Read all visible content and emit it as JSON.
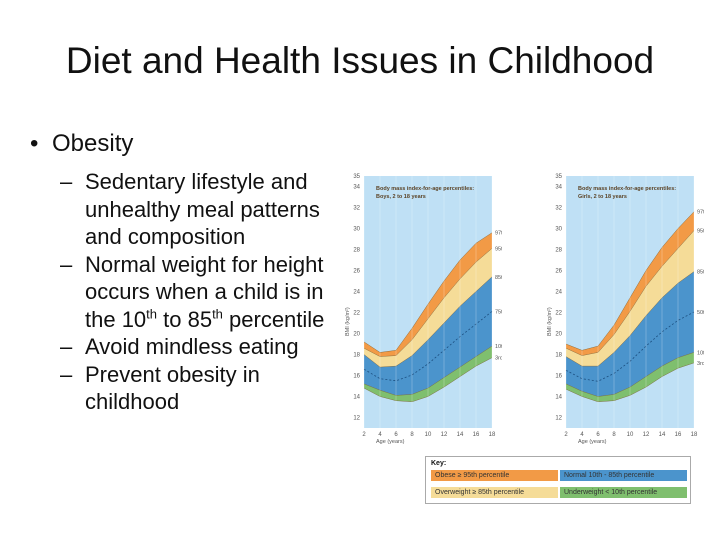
{
  "slide": {
    "title": "Diet and Health Issues in Childhood",
    "bullet": "Obesity",
    "bullet_marker": "•",
    "sub_marker": "–",
    "sub_items": [
      {
        "text": "Sedentary lifestyle and unhealthy meal patterns and composition"
      },
      {
        "pre": "Normal weight for height occurs when a child is in the 10",
        "sup1": "th",
        "mid": " to 85",
        "sup2": "th",
        "post": " percentile"
      },
      {
        "text": "Avoid mindless eating"
      },
      {
        "text": "Prevent obesity in childhood"
      }
    ]
  },
  "key": {
    "title": "Key:",
    "items": [
      {
        "label": "Obese ≥ 95th percentile",
        "color": "#f29a46"
      },
      {
        "label": "Normal 10th - 85th percentile",
        "color": "#4b94cc"
      },
      {
        "label": "Overweight ≥ 85th percentile",
        "color": "#f5dc98"
      },
      {
        "label": "Underweight < 10th percentile",
        "color": "#7fbf6e"
      }
    ]
  },
  "chart_data": [
    {
      "type": "area",
      "title": "Body mass index-for-age percentiles:",
      "subtitle": "Boys, 2 to 18 years",
      "ylabel": "BMI (kg/m²)",
      "xlabel": "Age (years)",
      "x": [
        2,
        4,
        6,
        8,
        10,
        12,
        14,
        16,
        18
      ],
      "yticks": [
        12,
        14,
        16,
        18,
        20,
        22,
        24,
        26,
        28,
        30,
        32,
        34,
        35
      ],
      "ylim": [
        11,
        35
      ],
      "xlim": [
        2,
        18
      ],
      "colors": {
        "background": "#bfe0f5",
        "obese": "#f29a46",
        "overweight": "#f5dc98",
        "normal": "#4b94cc",
        "underweight": "#7fbf6e",
        "low": "#9dd0ee"
      },
      "series": [
        {
          "name": "97th",
          "values": [
            19.2,
            18.2,
            18.4,
            20.5,
            22.8,
            25.0,
            27.0,
            28.6,
            29.6
          ]
        },
        {
          "name": "95th",
          "values": [
            18.6,
            17.8,
            17.9,
            19.4,
            21.4,
            23.4,
            25.2,
            26.8,
            28.1
          ]
        },
        {
          "name": "85th",
          "values": [
            18.0,
            16.8,
            16.9,
            17.9,
            19.4,
            21.0,
            22.6,
            24.0,
            25.4
          ]
        },
        {
          "name": "10th",
          "values": [
            15.2,
            14.6,
            14.1,
            14.2,
            14.8,
            15.8,
            16.8,
            17.8,
            18.8
          ]
        },
        {
          "name": "3rd",
          "values": [
            14.8,
            14.0,
            13.6,
            13.5,
            14.0,
            14.9,
            15.9,
            16.9,
            17.7
          ]
        }
      ],
      "right_labels": [
        "97th",
        "95th",
        "85th",
        "75th",
        "10th",
        "3rd"
      ]
    },
    {
      "type": "area",
      "title": "Body mass index-for-age percentiles:",
      "subtitle": "Girls, 2 to 18 years",
      "ylabel": "BMI (kg/m²)",
      "xlabel": "Age (years)",
      "x": [
        2,
        4,
        6,
        8,
        10,
        12,
        14,
        16,
        18
      ],
      "yticks": [
        12,
        14,
        16,
        18,
        20,
        22,
        24,
        26,
        28,
        30,
        32,
        34,
        35
      ],
      "ylim": [
        11,
        35
      ],
      "xlim": [
        2,
        18
      ],
      "colors": {
        "background": "#bfe0f5",
        "obese": "#f29a46",
        "overweight": "#f5dc98",
        "normal": "#4b94cc",
        "underweight": "#7fbf6e",
        "low": "#9dd0ee"
      },
      "series": [
        {
          "name": "97th",
          "values": [
            19.0,
            18.4,
            18.8,
            20.8,
            23.4,
            26.0,
            28.2,
            30.0,
            31.6
          ]
        },
        {
          "name": "95th",
          "values": [
            18.6,
            17.9,
            18.2,
            19.9,
            22.1,
            24.5,
            26.4,
            28.1,
            29.8
          ]
        },
        {
          "name": "85th",
          "values": [
            17.8,
            16.9,
            16.9,
            18.2,
            19.8,
            21.7,
            23.4,
            24.8,
            25.9
          ]
        },
        {
          "name": "10th",
          "values": [
            15.2,
            14.5,
            14.0,
            14.2,
            14.9,
            15.9,
            16.9,
            17.7,
            18.2
          ]
        },
        {
          "name": "3rd",
          "values": [
            14.7,
            14.0,
            13.5,
            13.6,
            14.1,
            14.9,
            15.9,
            16.7,
            17.2
          ]
        }
      ],
      "right_labels": [
        "97th",
        "95th",
        "85th",
        "50th",
        "10th",
        "3rd"
      ]
    }
  ]
}
